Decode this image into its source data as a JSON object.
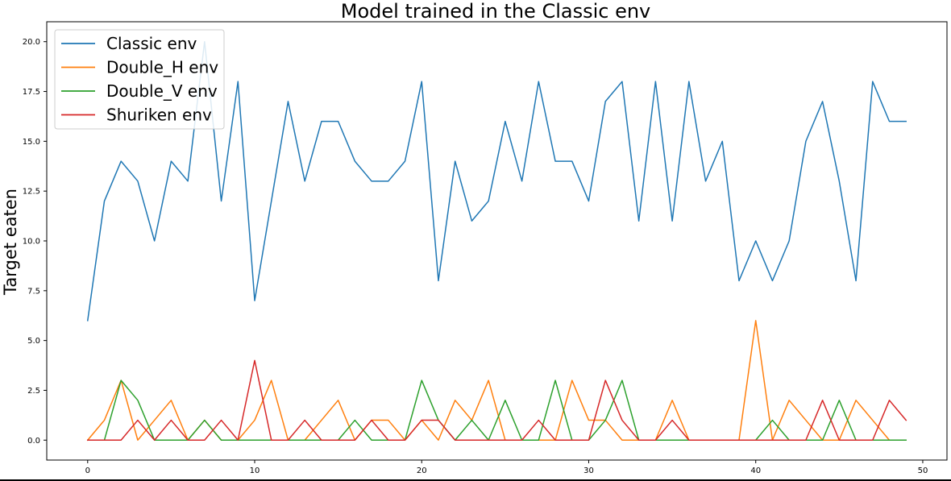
{
  "chart_data": {
    "type": "line",
    "title": "Model trained in the Classic env",
    "xlabel": "",
    "ylabel": "Target eaten",
    "xlim": [
      -2.45,
      51.45
    ],
    "ylim": [
      -1.0,
      21.0
    ],
    "xticks": [
      0,
      10,
      20,
      30,
      40,
      50
    ],
    "yticks": [
      0.0,
      2.5,
      5.0,
      7.5,
      10.0,
      12.5,
      15.0,
      17.5,
      20.0
    ],
    "ytick_labels": [
      "0.0",
      "2.5",
      "5.0",
      "7.5",
      "10.0",
      "12.5",
      "15.0",
      "17.5",
      "20.0"
    ],
    "grid": false,
    "legend_position": "top-left",
    "x": [
      0,
      1,
      2,
      3,
      4,
      5,
      6,
      7,
      8,
      9,
      10,
      11,
      12,
      13,
      14,
      15,
      16,
      17,
      18,
      19,
      20,
      21,
      22,
      23,
      24,
      25,
      26,
      27,
      28,
      29,
      30,
      31,
      32,
      33,
      34,
      35,
      36,
      37,
      38,
      39,
      40,
      41,
      42,
      43,
      44,
      45,
      46,
      47,
      48,
      49
    ],
    "series": [
      {
        "name": "Classic env",
        "color": "#1f77b4",
        "values": [
          6,
          12,
          14,
          13,
          10,
          14,
          13,
          20,
          12,
          18,
          7,
          12,
          17,
          13,
          16,
          16,
          14,
          13,
          13,
          14,
          18,
          8,
          14,
          11,
          12,
          16,
          13,
          18,
          14,
          14,
          12,
          17,
          18,
          11,
          18,
          11,
          18,
          13,
          15,
          8,
          10,
          8,
          10,
          15,
          17,
          13,
          8,
          18,
          16,
          16
        ]
      },
      {
        "name": "Double_H env",
        "color": "#ff7f0e",
        "values": [
          0,
          1,
          3,
          0,
          1,
          2,
          0,
          1,
          0,
          0,
          1,
          3,
          0,
          0,
          1,
          2,
          0,
          1,
          1,
          0,
          1,
          0,
          2,
          1,
          3,
          0,
          0,
          0,
          0,
          3,
          1,
          1,
          0,
          0,
          0,
          2,
          0,
          0,
          0,
          0,
          6,
          0,
          2,
          1,
          0,
          0,
          2,
          1,
          0,
          0
        ]
      },
      {
        "name": "Double_V env",
        "color": "#2ca02c",
        "values": [
          0,
          0,
          3,
          2,
          0,
          0,
          0,
          1,
          0,
          0,
          0,
          0,
          0,
          0,
          0,
          0,
          1,
          0,
          0,
          0,
          3,
          1,
          0,
          1,
          0,
          2,
          0,
          0,
          3,
          0,
          0,
          1,
          3,
          0,
          0,
          0,
          0,
          0,
          0,
          0,
          0,
          1,
          0,
          0,
          0,
          2,
          0,
          0,
          0,
          0
        ]
      },
      {
        "name": "Shuriken env",
        "color": "#d62728",
        "values": [
          0,
          0,
          0,
          1,
          0,
          1,
          0,
          0,
          1,
          0,
          4,
          0,
          0,
          1,
          0,
          0,
          0,
          1,
          0,
          0,
          1,
          1,
          0,
          0,
          0,
          0,
          0,
          1,
          0,
          0,
          0,
          3,
          1,
          0,
          0,
          1,
          0,
          0,
          0,
          0,
          0,
          0,
          0,
          0,
          2,
          0,
          0,
          0,
          2,
          1
        ]
      }
    ]
  }
}
